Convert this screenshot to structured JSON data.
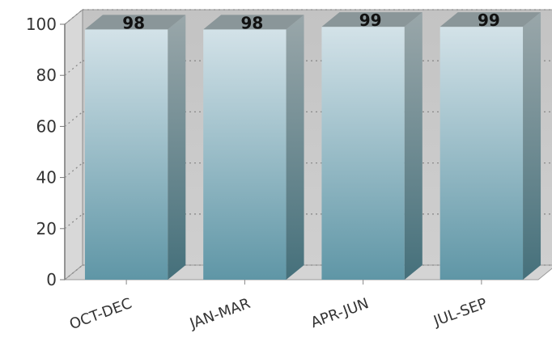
{
  "chart_data": {
    "type": "bar",
    "style": "3d",
    "categories": [
      "OCT-DEC",
      "JAN-MAR",
      "APR-JUN",
      "JUL-SEP"
    ],
    "values": [
      98,
      98,
      99,
      99
    ],
    "data_labels": [
      "98",
      "98",
      "99",
      "99"
    ],
    "y_ticks": [
      "0",
      "20",
      "40",
      "60",
      "80",
      "100"
    ],
    "ylim": [
      0,
      100
    ],
    "grid": true,
    "title": "",
    "xlabel": "",
    "ylabel": "",
    "colors": {
      "bar_top": "#d3e2e8",
      "bar_bottom": "#5f96a6",
      "bar_side_top": "#9aa7aa",
      "bar_side_bottom": "#45707b",
      "bar_cap": "#8a9699",
      "back_wall": "#c9c9c9",
      "side_wall": "#d8d8d8",
      "floor": "#d4d4d4",
      "grid": "#8a8a8a"
    }
  }
}
